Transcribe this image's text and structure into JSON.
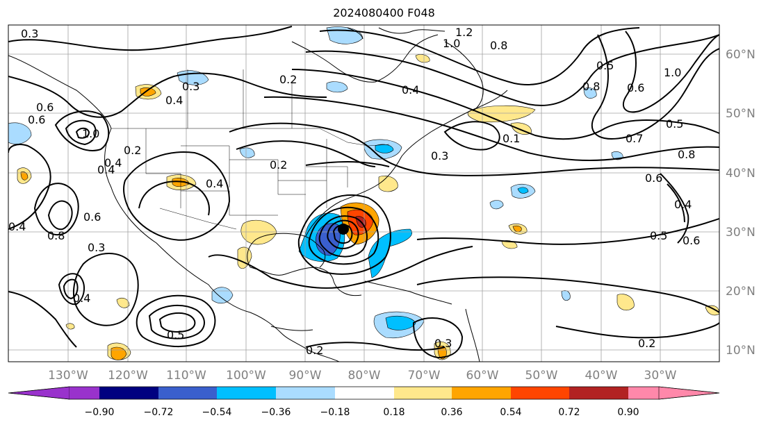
{
  "title": "2024080400 F048",
  "map": {
    "longitude_labels": [
      "130°W",
      "120°W",
      "110°W",
      "100°W",
      "90°W",
      "80°W",
      "70°W",
      "60°W",
      "50°W",
      "40°W",
      "30°W"
    ],
    "latitude_labels": [
      "60°N",
      "50°N",
      "40°N",
      "30°N",
      "20°N",
      "10°N"
    ],
    "grid": true,
    "contour_labels": [
      "0.3",
      "1.2",
      "1.0",
      "0.8",
      "0.2",
      "0.4",
      "0.5",
      "0.6",
      "1.0",
      "0.7",
      "0.8",
      "0.6",
      "0.5",
      "0.6",
      "0.4",
      "0.3",
      "0.1",
      "0.4",
      "0.2",
      "0.4",
      "0.3",
      "0.2",
      "0.4",
      "0.6",
      "0.8",
      "0.3",
      "0.4",
      "0.5",
      "0.6",
      "0.5",
      "0.2",
      "0.3",
      "0.2",
      "0.8",
      "0.4",
      "1.0",
      "0.6",
      "0.4"
    ],
    "storm_marker": "tropical-cyclone-center"
  },
  "colorbar": {
    "colors": [
      "#9932cc",
      "#000080",
      "#3a5fcd",
      "#00bfff",
      "#aadcff",
      "#ffffff",
      "#ffe88c",
      "#ffa500",
      "#ff4500",
      "#b22222",
      "#ff88aa",
      "#ff88aa"
    ],
    "ticks": [
      "−0.90",
      "−0.72",
      "−0.54",
      "−0.36",
      "−0.18",
      "0.18",
      "0.36",
      "0.54",
      "0.72",
      "0.90"
    ]
  }
}
